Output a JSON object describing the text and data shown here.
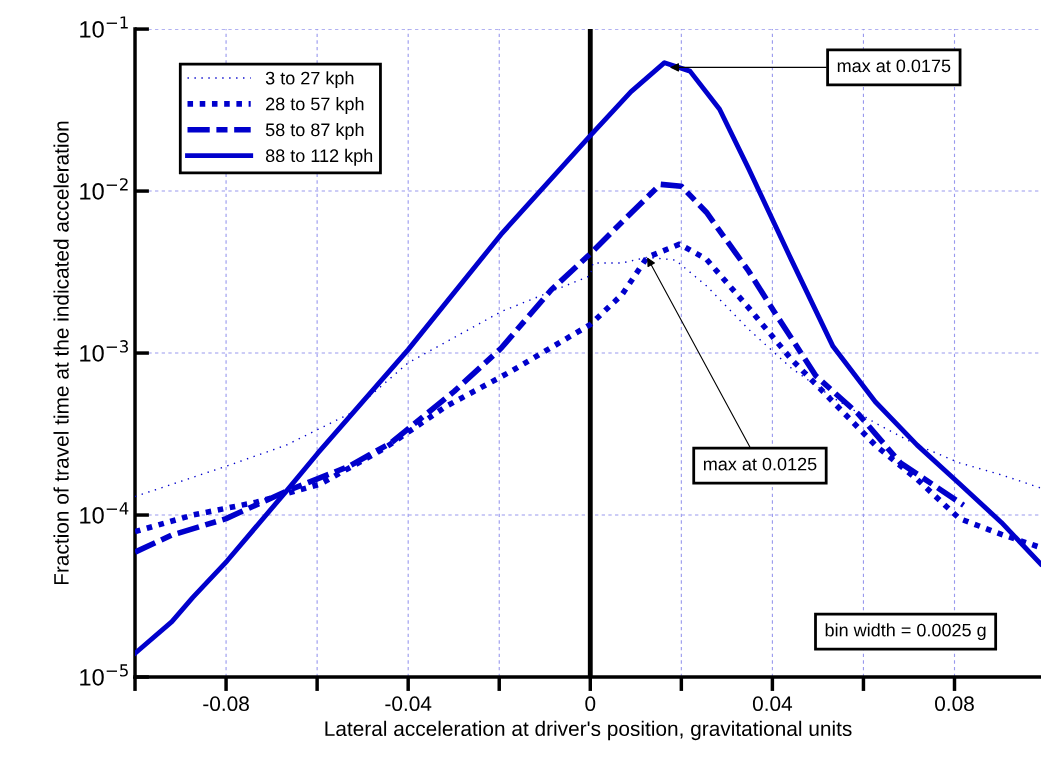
{
  "chart_data": {
    "type": "line",
    "xlabel": "Lateral acceleration at driver's position, gravitational units",
    "ylabel": "Fraction of travel time at the indicated acceleration",
    "log": "y",
    "grid": true,
    "legend": "top left",
    "xlim": [
      -0.1,
      0.099
    ],
    "ylim": [
      1e-05,
      0.1
    ],
    "xticks": [
      {
        "value": -0.1,
        "label": null
      },
      -0.08,
      {
        "value": -0.06,
        "label": null
      },
      -0.04,
      {
        "value": -0.02,
        "label": null
      },
      0,
      {
        "value": 0.02,
        "label": null
      },
      0.04,
      {
        "value": 0.06,
        "label": null
      },
      0.08
    ],
    "yticks": [
      {
        "value": 1e-05,
        "label": "10$^{−5}$"
      },
      {
        "value": 0.0001,
        "label": "10$^{−4}$"
      },
      {
        "value": 0.001,
        "label": "10$^{−3}$"
      },
      {
        "value": 0.01,
        "label": "10$^{−2}$"
      },
      {
        "value": 0.1,
        "label": "10$^{−1}$"
      }
    ],
    "ref_lines": [
      {
        "axis": "x",
        "value": 0,
        "color": "#000000"
      }
    ],
    "annotations": [
      {
        "text": "max at 0.0175",
        "x": 0.0175,
        "y": 0.058
      },
      {
        "text": "max at 0.0125",
        "x": 0.0125,
        "y": 0.0039
      },
      "bin width = 0.0025 g"
    ],
    "series": [
      {
        "name": "3 to 27 kph",
        "color": "#0000cc",
        "line_style": "dotted",
        "x": [
          -0.1,
          -0.08,
          -0.0668,
          -0.053,
          -0.04,
          -0.0196,
          0,
          0.0006,
          0.007,
          0.0125,
          0.0187,
          0.0255,
          0.0348,
          0.0441,
          0.0533,
          0.0626,
          0.0718,
          0.0811,
          0.0903,
          0.0989
        ],
        "values": [
          0.00013,
          0.0002,
          0.00027,
          0.00042,
          0.00087,
          0.0018,
          0.003,
          0.0036,
          0.0036,
          0.0039,
          0.00375,
          0.0026,
          0.0014,
          0.00081,
          0.00053,
          0.00037,
          0.00027,
          0.00021,
          0.000177,
          0.000147
        ]
      },
      {
        "name": "28 to 57 kph",
        "color": "#0000cc",
        "line_style": "dotted",
        "x": [
          -0.1,
          -0.0873,
          -0.0734,
          -0.0594,
          -0.0455,
          -0.0316,
          -0.0178,
          0,
          0.007,
          0.0125,
          0.0196,
          0.0255,
          0.0348,
          0.0441,
          0.0533,
          0.0626,
          0.0718,
          0.0811,
          0.0903,
          0.0989
        ],
        "values": [
          7.9e-05,
          0.0001,
          0.00012,
          0.000155,
          0.000255,
          0.00047,
          0.00076,
          0.0015,
          0.0023,
          0.0039,
          0.0047,
          0.0038,
          0.0019,
          0.00092,
          0.0005,
          0.00027,
          0.000166,
          9.5e-05,
          7.6e-05,
          6.3e-05
        ]
      },
      {
        "name": "58 to 87 kph",
        "color": "#0000cc",
        "line_style": "dashed",
        "x": [
          -0.1,
          -0.092,
          -0.08,
          -0.0668,
          -0.053,
          -0.0437,
          -0.0299,
          -0.0196,
          -0.0086,
          0,
          0.0071,
          0.0154,
          0.02,
          0.0255,
          0.0348,
          0.0404,
          0.0496,
          0.0589,
          0.0681,
          0.082
        ],
        "values": [
          5.9e-05,
          7.5e-05,
          9.5e-05,
          0.00014,
          0.0002,
          0.00028,
          0.00058,
          0.00107,
          0.00245,
          0.0041,
          0.0065,
          0.011,
          0.0107,
          0.0074,
          0.0032,
          0.0018,
          0.00072,
          0.00042,
          0.00021,
          0.000115
        ]
      },
      {
        "name": "88 to 112 kph",
        "color": "#0000cc",
        "line_style": "solid",
        "x": [
          -0.1,
          -0.0919,
          -0.0873,
          -0.0798,
          -0.0668,
          -0.0599,
          -0.04,
          -0.0196,
          0,
          0.0089,
          0.0163,
          0.0219,
          0.0284,
          0.0348,
          0.0441,
          0.0533,
          0.0626,
          0.0718,
          0.0811,
          0.0903,
          0.0989
        ],
        "values": [
          1.4e-05,
          2.2e-05,
          3.1e-05,
          5.2e-05,
          0.00014,
          0.00024,
          0.00105,
          0.0054,
          0.022,
          0.041,
          0.062,
          0.055,
          0.032,
          0.0137,
          0.0038,
          0.0011,
          0.0005,
          0.00027,
          0.000156,
          9e-05,
          5e-05
        ]
      }
    ]
  }
}
